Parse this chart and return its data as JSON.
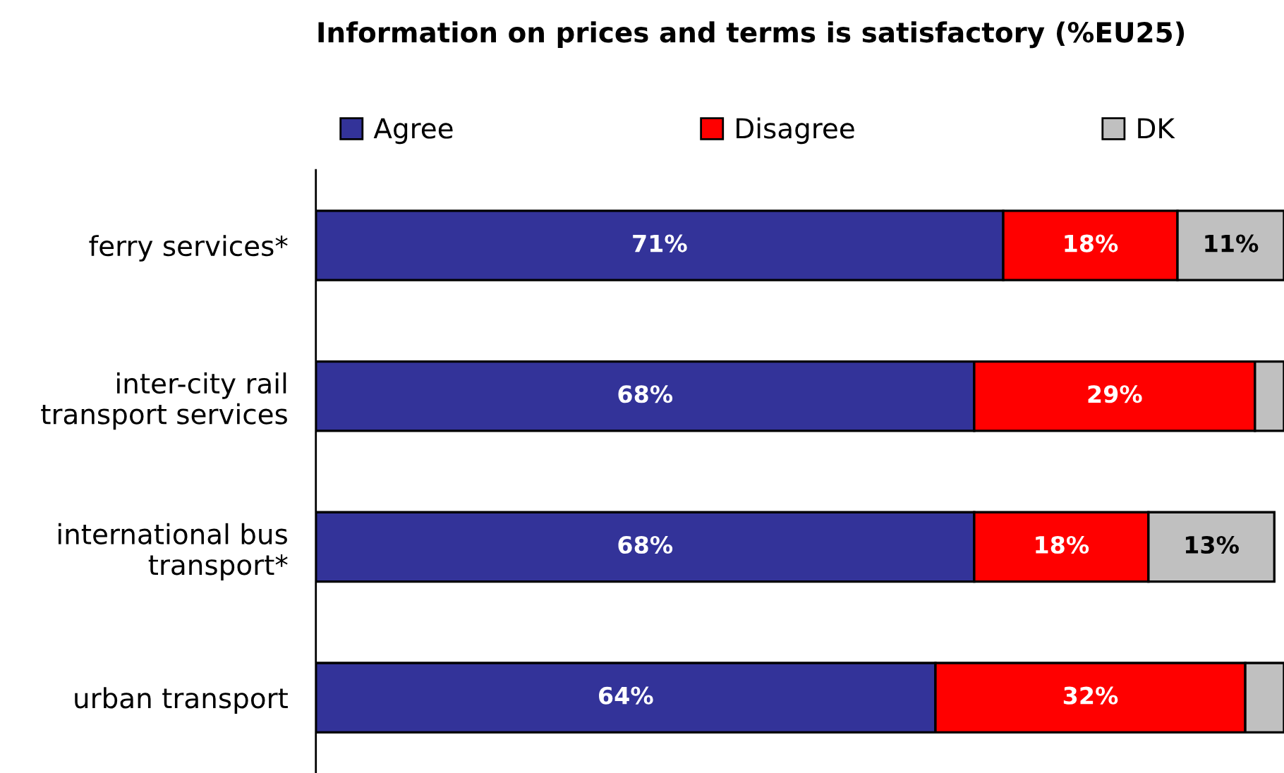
{
  "chart_data": {
    "type": "bar",
    "orientation": "horizontal",
    "stacked": true,
    "title": "Information on prices and terms is satisfactory (%EU25)",
    "categories": [
      "ferry services*",
      "inter-city rail\ntransport services",
      "international bus\ntransport*",
      "urban transport"
    ],
    "series": [
      {
        "name": "Agree",
        "color": "#333399",
        "values": [
          71,
          68,
          68,
          64
        ],
        "value_labels": [
          "71%",
          "68%",
          "68%",
          "64%"
        ]
      },
      {
        "name": "Disagree",
        "color": "#ff0000",
        "values": [
          18,
          29,
          18,
          32
        ],
        "value_labels": [
          "18%",
          "29%",
          "18%",
          "32%"
        ]
      },
      {
        "name": "DK",
        "color": "#c0c0c0",
        "values": [
          11,
          3,
          13,
          4
        ],
        "value_labels": [
          "11%",
          null,
          "13%",
          null
        ]
      }
    ],
    "legend": "top",
    "grid": false,
    "tick_labels": "y"
  }
}
